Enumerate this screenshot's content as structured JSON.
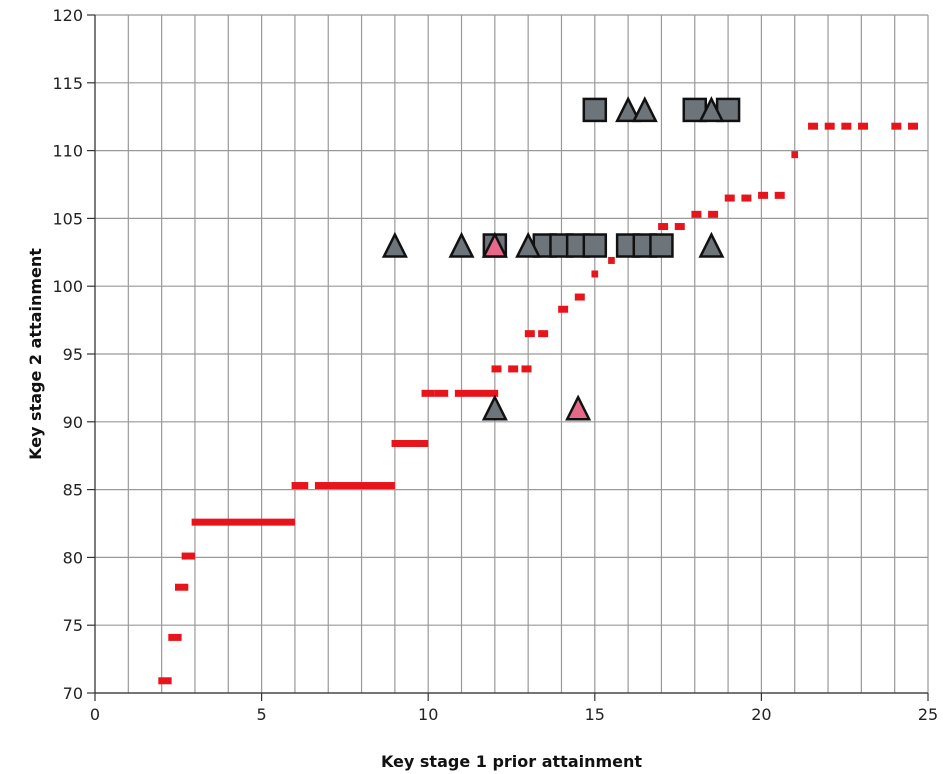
{
  "chart_data": {
    "type": "scatter",
    "title": "",
    "xlabel": "Key stage 1 prior attainment",
    "ylabel": "Key stage 2 attainment",
    "xlim": [
      0,
      25
    ],
    "ylim": [
      70,
      120
    ],
    "xticks": [
      0,
      5,
      10,
      15,
      20,
      25
    ],
    "yticks": [
      70,
      75,
      80,
      85,
      90,
      95,
      100,
      105,
      110,
      115,
      120
    ],
    "grid": true,
    "legend": "none",
    "colors": {
      "expected_line": "#e8141c",
      "grey_marker": "#6d747a",
      "pink_marker": "#e8688a",
      "marker_outline": "#111111"
    },
    "series": [
      {
        "marker": "dash",
        "color": "#e8141c",
        "points": [
          {
            "x1": 1.9,
            "x2": 2.3,
            "y": 70.9
          },
          {
            "x1": 2.2,
            "x2": 2.6,
            "y": 74.1
          },
          {
            "x1": 2.4,
            "x2": 2.8,
            "y": 77.8
          },
          {
            "x1": 2.6,
            "x2": 3.0,
            "y": 80.1
          },
          {
            "x1": 2.9,
            "x2": 6.0,
            "y": 82.6
          },
          {
            "x1": 5.9,
            "x2": 6.4,
            "y": 85.3
          },
          {
            "x1": 6.6,
            "x2": 9.0,
            "y": 85.3
          },
          {
            "x1": 8.9,
            "x2": 10.0,
            "y": 88.4
          },
          {
            "x1": 9.8,
            "x2": 10.2,
            "y": 92.1
          },
          {
            "x1": 10.2,
            "x2": 10.6,
            "y": 92.1
          },
          {
            "x1": 10.8,
            "x2": 12.1,
            "y": 92.1
          },
          {
            "x1": 11.9,
            "x2": 12.2,
            "y": 93.9
          },
          {
            "x1": 12.4,
            "x2": 12.7,
            "y": 93.9
          },
          {
            "x1": 12.8,
            "x2": 13.1,
            "y": 93.9
          },
          {
            "x1": 12.9,
            "x2": 13.2,
            "y": 96.5
          },
          {
            "x1": 13.3,
            "x2": 13.6,
            "y": 96.5
          },
          {
            "x1": 13.9,
            "x2": 14.2,
            "y": 98.3
          },
          {
            "x1": 14.4,
            "x2": 14.7,
            "y": 99.2
          },
          {
            "x1": 14.9,
            "x2": 15.1,
            "y": 100.9
          },
          {
            "x1": 15.4,
            "x2": 15.6,
            "y": 101.9
          },
          {
            "x1": 16.9,
            "x2": 17.2,
            "y": 104.4
          },
          {
            "x1": 17.4,
            "x2": 17.7,
            "y": 104.4
          },
          {
            "x1": 17.9,
            "x2": 18.2,
            "y": 105.3
          },
          {
            "x1": 18.4,
            "x2": 18.7,
            "y": 105.3
          },
          {
            "x1": 18.9,
            "x2": 19.2,
            "y": 106.5
          },
          {
            "x1": 19.4,
            "x2": 19.7,
            "y": 106.5
          },
          {
            "x1": 19.9,
            "x2": 20.2,
            "y": 106.7
          },
          {
            "x1": 20.4,
            "x2": 20.7,
            "y": 106.7
          },
          {
            "x1": 20.9,
            "x2": 21.1,
            "y": 109.7
          },
          {
            "x1": 21.4,
            "x2": 21.7,
            "y": 111.8
          },
          {
            "x1": 21.9,
            "x2": 22.2,
            "y": 111.8
          },
          {
            "x1": 22.4,
            "x2": 22.7,
            "y": 111.8
          },
          {
            "x1": 22.9,
            "x2": 23.2,
            "y": 111.8
          },
          {
            "x1": 23.9,
            "x2": 24.2,
            "y": 111.8
          },
          {
            "x1": 24.4,
            "x2": 24.7,
            "y": 111.8
          }
        ]
      },
      {
        "marker": "square",
        "color": "#6d747a",
        "points": [
          {
            "x": 15.0,
            "y": 113
          },
          {
            "x": 18.0,
            "y": 113
          },
          {
            "x": 19.0,
            "y": 113
          },
          {
            "x": 12.0,
            "y": 103
          },
          {
            "x": 13.5,
            "y": 103
          },
          {
            "x": 14.0,
            "y": 103
          },
          {
            "x": 14.5,
            "y": 103
          },
          {
            "x": 15.0,
            "y": 103
          },
          {
            "x": 16.0,
            "y": 103
          },
          {
            "x": 16.5,
            "y": 103
          },
          {
            "x": 17.0,
            "y": 103
          }
        ]
      },
      {
        "marker": "triangle",
        "color": "#6d747a",
        "points": [
          {
            "x": 16.0,
            "y": 113
          },
          {
            "x": 16.5,
            "y": 113
          },
          {
            "x": 18.5,
            "y": 113
          },
          {
            "x": 9.0,
            "y": 103
          },
          {
            "x": 11.0,
            "y": 103
          },
          {
            "x": 13.0,
            "y": 103
          },
          {
            "x": 18.5,
            "y": 103
          },
          {
            "x": 12.0,
            "y": 91
          }
        ]
      },
      {
        "marker": "triangle",
        "color": "#e8688a",
        "points": [
          {
            "x": 12.0,
            "y": 103
          },
          {
            "x": 14.5,
            "y": 91
          }
        ]
      }
    ]
  }
}
